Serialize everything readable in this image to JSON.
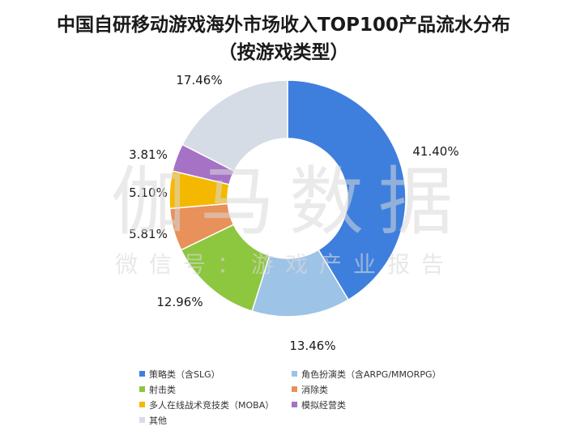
{
  "chart_data": {
    "type": "pie",
    "title_line1": "中国自研移动游戏海外市场收入TOP100产品流水分布",
    "title_line2": "（按游戏类型）",
    "donut": true,
    "categories": [
      "策略类（含SLG）",
      "角色扮演类（含ARPG/MMORPG）",
      "射击类",
      "消除类",
      "多人在线战术竞技类（MOBA）",
      "模拟经营类",
      "其他"
    ],
    "values": [
      41.4,
      13.46,
      12.96,
      5.81,
      5.1,
      3.81,
      17.46
    ],
    "value_labels": [
      "41.40%",
      "13.46%",
      "12.96%",
      "5.81%",
      "5.10%",
      "3.81%",
      "17.46%"
    ],
    "colors": [
      "#3E7FDD",
      "#9DC3E6",
      "#8DC63F",
      "#E8915A",
      "#F5B800",
      "#A572C6",
      "#D6DCE5"
    ],
    "legend_position": "bottom"
  },
  "watermark": {
    "main": "伽马数据",
    "sub": "微信号：游戏产业报告"
  }
}
